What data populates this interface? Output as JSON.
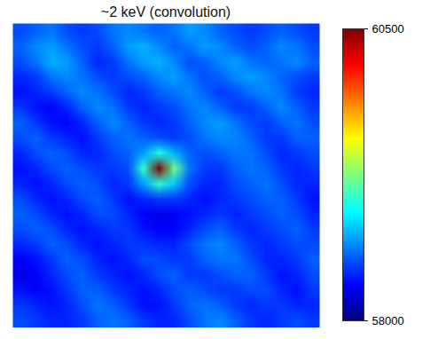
{
  "chart_data": {
    "type": "heatmap",
    "title": "~2 keV (convolution)",
    "tick_labels": false,
    "color_range": [
      58000,
      60500
    ],
    "color_ticks": [
      58000,
      60500
    ],
    "cells": [
      [
        58500,
        58550,
        58600,
        58500,
        58450,
        58500,
        58600,
        58650,
        58600,
        58550,
        58600,
        58700,
        58650,
        58550,
        58500,
        58450,
        58500,
        58550,
        58500,
        58450
      ],
      [
        58550,
        58650,
        58700,
        58600,
        58500,
        58450,
        58550,
        58700,
        58750,
        58650,
        58550,
        58600,
        58700,
        58650,
        58550,
        58500,
        58550,
        58650,
        58600,
        58500
      ],
      [
        58500,
        58600,
        58750,
        58700,
        58550,
        58400,
        58450,
        58600,
        58700,
        58750,
        58650,
        58500,
        58550,
        58650,
        58700,
        58600,
        58550,
        58600,
        58650,
        58550
      ],
      [
        58400,
        58450,
        58600,
        58650,
        58600,
        58500,
        58450,
        58500,
        58550,
        58650,
        58700,
        58600,
        58500,
        58550,
        58650,
        58700,
        58650,
        58550,
        58500,
        58450
      ],
      [
        58350,
        58400,
        58450,
        58550,
        58650,
        58600,
        58500,
        58400,
        58450,
        58550,
        58600,
        58650,
        58550,
        58450,
        58500,
        58600,
        58650,
        58600,
        58450,
        58400
      ],
      [
        58450,
        58350,
        58300,
        58400,
        58550,
        58650,
        58600,
        58450,
        58400,
        58450,
        58500,
        58600,
        58650,
        58550,
        58450,
        58450,
        58550,
        58650,
        58550,
        58450
      ],
      [
        58550,
        58450,
        58350,
        58300,
        58400,
        58550,
        58650,
        58550,
        58450,
        58400,
        58450,
        58550,
        58650,
        58700,
        58600,
        58500,
        58450,
        58550,
        58600,
        58500
      ],
      [
        58500,
        58550,
        58450,
        58400,
        58350,
        58450,
        58550,
        58600,
        58550,
        58500,
        58450,
        58500,
        58600,
        58650,
        58650,
        58550,
        58450,
        58450,
        58550,
        58550
      ],
      [
        58400,
        58500,
        58550,
        58500,
        58400,
        58400,
        58500,
        58550,
        58700,
        59000,
        58750,
        58550,
        58500,
        58550,
        58600,
        58600,
        58500,
        58400,
        58450,
        58500
      ],
      [
        58350,
        58400,
        58500,
        58550,
        58500,
        58450,
        58450,
        58500,
        59050,
        60500,
        59200,
        58600,
        58450,
        58450,
        58550,
        58600,
        58550,
        58450,
        58400,
        58450
      ],
      [
        58400,
        58350,
        58400,
        58500,
        58550,
        58500,
        58400,
        58450,
        58700,
        59050,
        58800,
        58500,
        58400,
        58400,
        58500,
        58550,
        58600,
        58500,
        58400,
        58400
      ],
      [
        58500,
        58400,
        58350,
        58400,
        58500,
        58550,
        58450,
        58350,
        58400,
        58450,
        58450,
        58400,
        58350,
        58400,
        58450,
        58500,
        58550,
        58550,
        58450,
        58350
      ],
      [
        58550,
        58500,
        58400,
        58350,
        58400,
        58500,
        58500,
        58400,
        58300,
        58250,
        58300,
        58350,
        58400,
        58450,
        58400,
        58450,
        58500,
        58550,
        58500,
        58400
      ],
      [
        58500,
        58550,
        58500,
        58400,
        58350,
        58400,
        58450,
        58450,
        58350,
        58300,
        58300,
        58400,
        58500,
        58550,
        58450,
        58400,
        58450,
        58500,
        58550,
        58450
      ],
      [
        58400,
        58450,
        58550,
        58500,
        58400,
        58350,
        58400,
        58450,
        58450,
        58400,
        58400,
        58500,
        58600,
        58650,
        58550,
        58450,
        58400,
        58450,
        58500,
        58500
      ],
      [
        58300,
        58350,
        58450,
        58550,
        58500,
        58400,
        58350,
        58400,
        58500,
        58500,
        58450,
        58450,
        58550,
        58600,
        58600,
        58500,
        58400,
        58400,
        58450,
        58550
      ],
      [
        58250,
        58300,
        58400,
        58500,
        58550,
        58450,
        58400,
        58350,
        58400,
        58500,
        58550,
        58450,
        58450,
        58500,
        58550,
        58550,
        58450,
        58350,
        58400,
        58500
      ],
      [
        58350,
        58300,
        58350,
        58450,
        58550,
        58550,
        58450,
        58400,
        58350,
        58400,
        58500,
        58550,
        58500,
        58450,
        58450,
        58500,
        58500,
        58400,
        58350,
        58450
      ],
      [
        58450,
        58400,
        58350,
        58400,
        58500,
        58600,
        58550,
        58450,
        58350,
        58350,
        58450,
        58550,
        58600,
        58550,
        58450,
        58400,
        58450,
        58450,
        58400,
        58400
      ],
      [
        58500,
        58450,
        58400,
        58400,
        58450,
        58550,
        58600,
        58550,
        58450,
        58400,
        58400,
        58500,
        58600,
        58650,
        58550,
        58450,
        58400,
        58450,
        58500,
        58450
      ]
    ]
  }
}
